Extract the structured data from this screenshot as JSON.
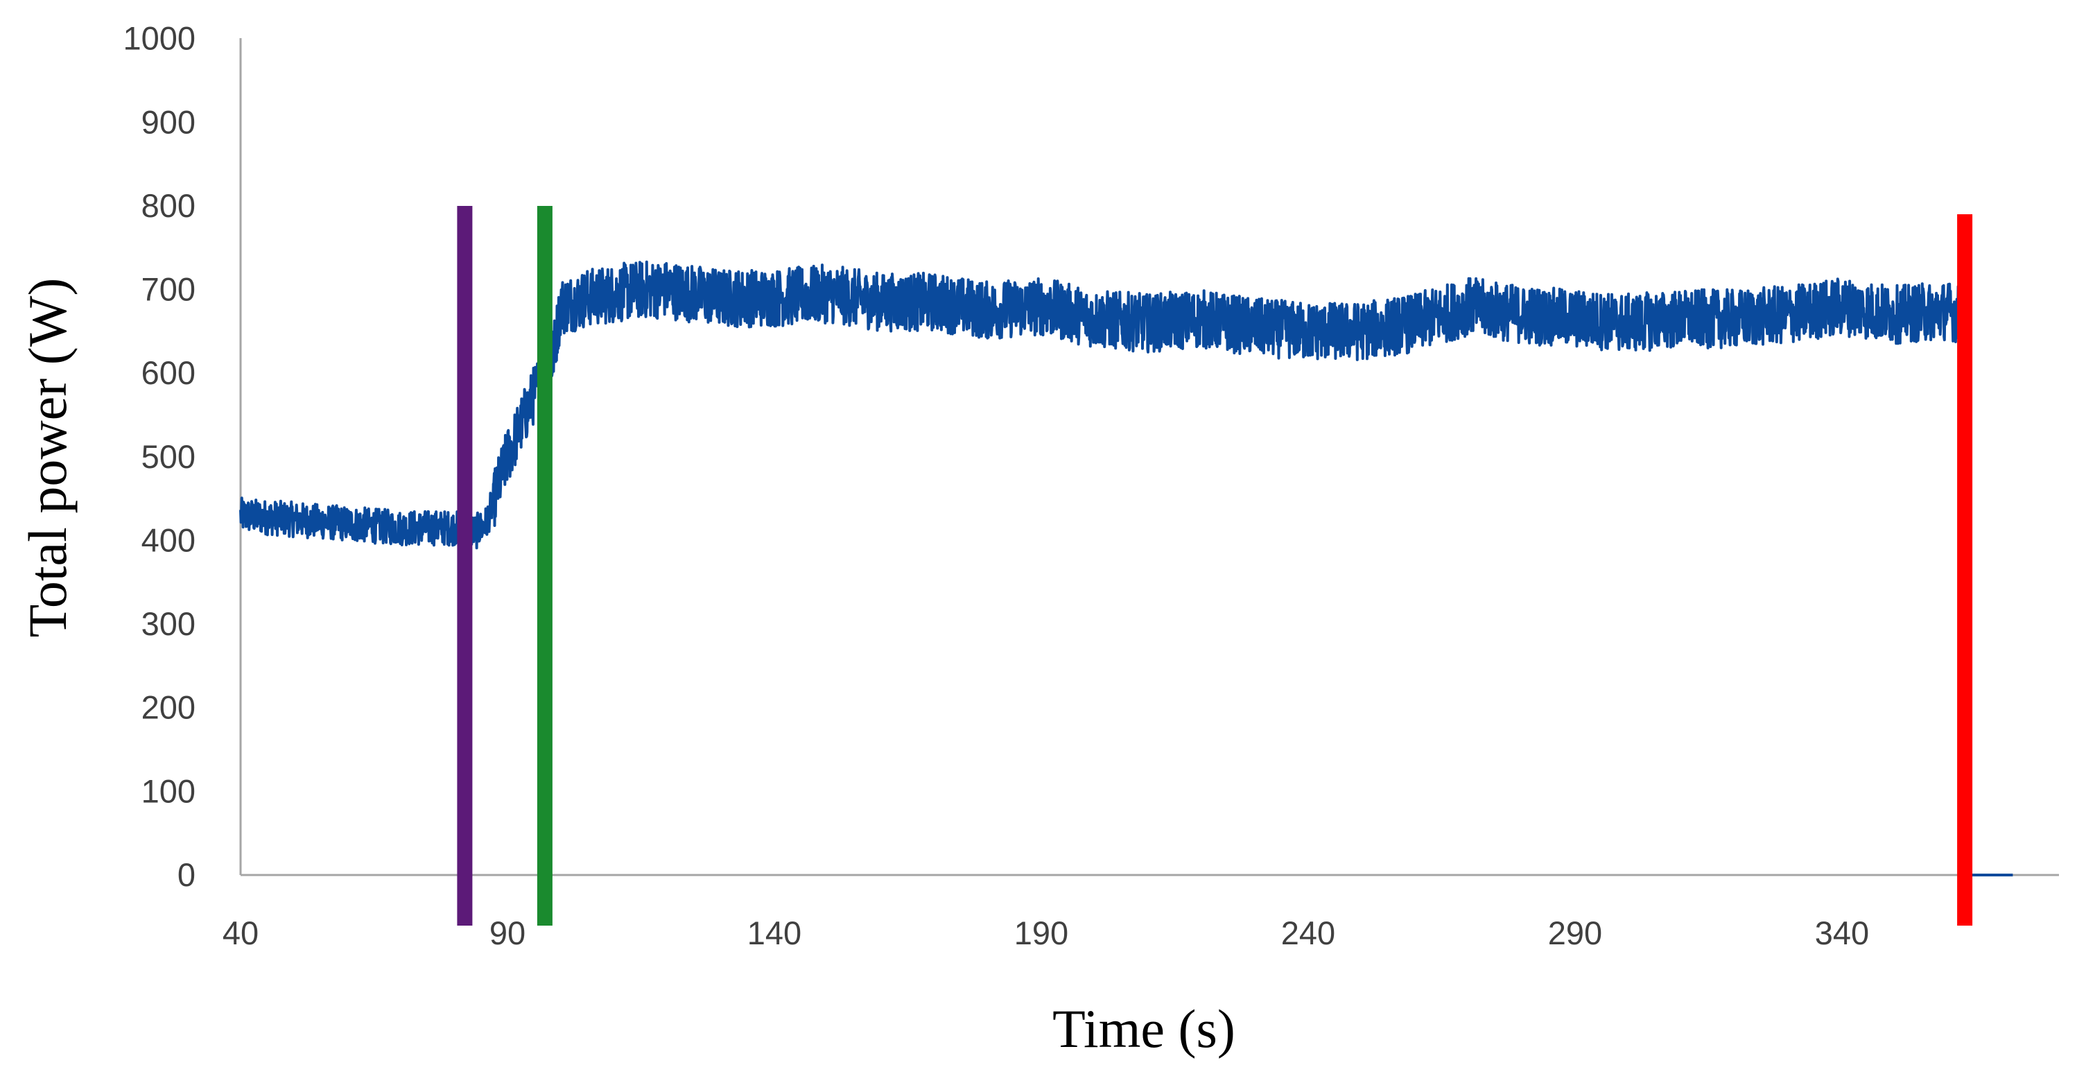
{
  "chart_data": {
    "type": "line",
    "title": "",
    "xlabel": "Time (s)",
    "ylabel": "Total power (W)",
    "xlim": [
      40,
      375
    ],
    "ylim": [
      0,
      1000
    ],
    "x_ticks": [
      40,
      90,
      140,
      190,
      240,
      290,
      340
    ],
    "y_ticks": [
      0,
      100,
      200,
      300,
      400,
      500,
      600,
      700,
      800,
      900,
      1000
    ],
    "grid": false,
    "legend": "none",
    "series_color": "#0a4a9c",
    "noise_amplitude": 35,
    "series": [
      {
        "x": [
          40,
          50,
          60,
          70,
          80,
          84,
          86,
          88,
          90,
          92,
          94,
          96,
          98,
          100,
          105,
          110,
          115,
          120,
          130,
          140,
          150,
          160,
          170,
          180,
          190,
          200,
          210,
          220,
          230,
          240,
          250,
          260,
          270,
          280,
          290,
          300,
          310,
          320,
          330,
          340,
          350,
          360,
          362,
          363,
          372
        ],
        "values": [
          430,
          425,
          420,
          415,
          415,
          410,
          420,
          460,
          500,
          530,
          560,
          590,
          600,
          680,
          690,
          695,
          700,
          700,
          690,
          690,
          695,
          685,
          685,
          675,
          680,
          665,
          660,
          665,
          655,
          650,
          650,
          660,
          680,
          670,
          665,
          660,
          665,
          665,
          670,
          680,
          670,
          675,
          670,
          0,
          0
        ]
      }
    ],
    "markers": [
      {
        "x": 82,
        "color": "#5c1a78",
        "y_top": 800
      },
      {
        "x": 97,
        "color": "#1a8a2e",
        "y_top": 800
      },
      {
        "x": 363,
        "color": "#ff0000",
        "y_top": 790
      }
    ]
  }
}
